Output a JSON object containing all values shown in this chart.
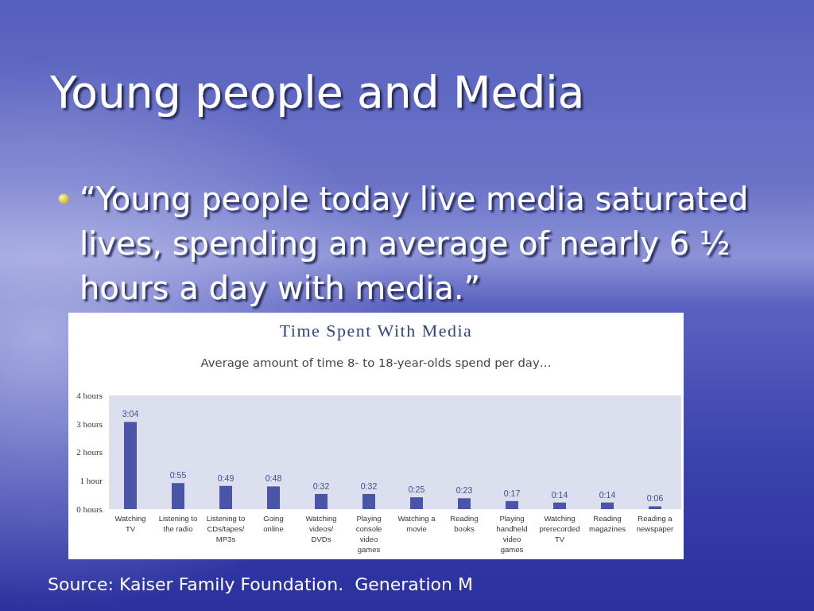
{
  "chart_data": {
    "type": "bar",
    "title": "Time Spent With Media",
    "subtitle": "Average amount of time 8- to 18-year-olds spend per day…",
    "categories": [
      "Watching TV",
      "Listening to the radio",
      "Listening to CDs/tapes/MP3s",
      "Going online",
      "Watching videos/DVDs",
      "Playing console video games",
      "Watching a movie",
      "Reading books",
      "Playing handheld video games",
      "Watching prerecorded TV",
      "Reading magazines",
      "Reading a newspaper"
    ],
    "values": [
      3.067,
      0.917,
      0.817,
      0.8,
      0.533,
      0.533,
      0.417,
      0.383,
      0.283,
      0.233,
      0.233,
      0.1
    ],
    "value_labels": [
      "3:04",
      "0:55",
      "0:49",
      "0:48",
      "0:32",
      "0:32",
      "0:25",
      "0:23",
      "0:17",
      "0:14",
      "0:14",
      "0:06"
    ],
    "color": "#4a55a8",
    "ylim": [
      0,
      4
    ],
    "yticks": [
      {
        "value": 0,
        "label": "0 hours"
      },
      {
        "value": 1,
        "label": "1 hour"
      },
      {
        "value": 2,
        "label": "2 hours"
      },
      {
        "value": 3,
        "label": "3 hours"
      },
      {
        "value": 4,
        "label": "4 hours"
      }
    ],
    "annotations": [
      "Young people and Media",
      "“Young people today live media saturated lives, spending an average of nearly 6 ½ hours a day with media.”",
      "Source: Kaiser Family Foundation.  Generation M"
    ]
  }
}
